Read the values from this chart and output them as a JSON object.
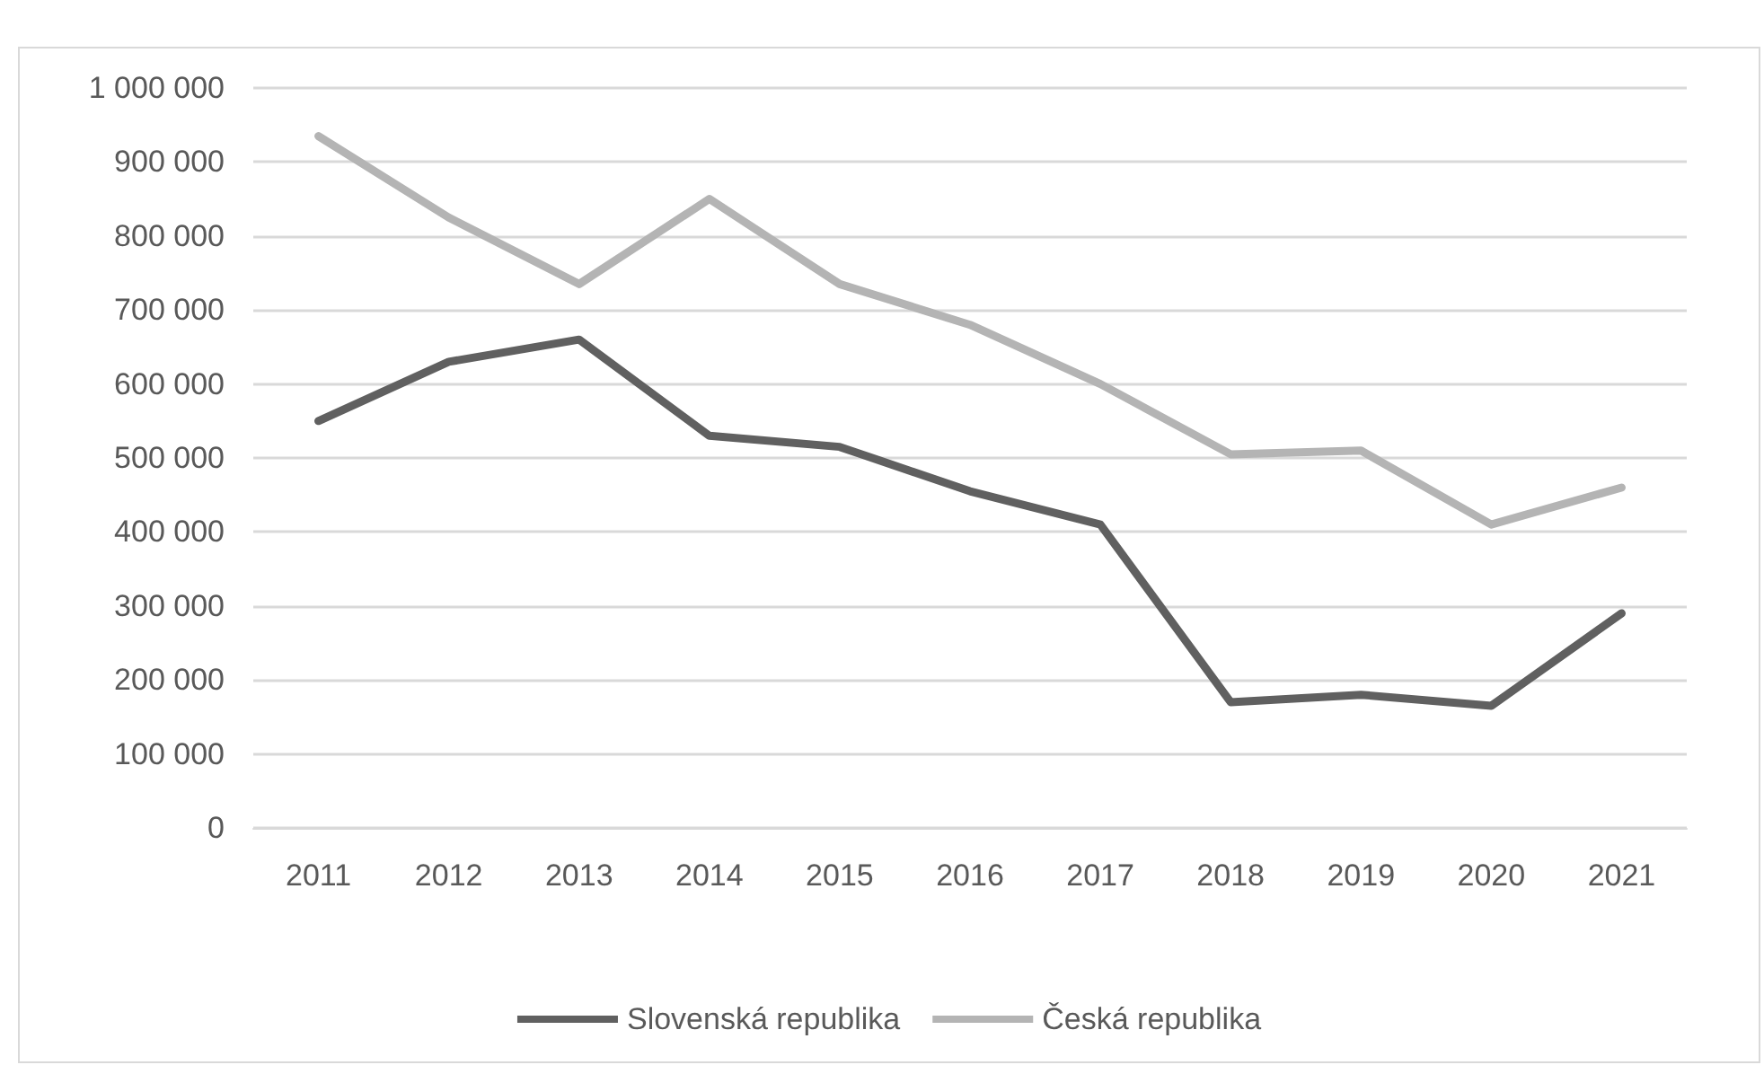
{
  "chart_data": {
    "type": "line",
    "categories": [
      "2011",
      "2012",
      "2013",
      "2014",
      "2015",
      "2016",
      "2017",
      "2018",
      "2019",
      "2020",
      "2021"
    ],
    "series": [
      {
        "name": "Slovenská republika",
        "color": "#606060",
        "values": [
          550000,
          630000,
          660000,
          530000,
          515000,
          455000,
          410000,
          170000,
          180000,
          165000,
          290000
        ]
      },
      {
        "name": "Česká republika",
        "color": "#b4b4b4",
        "values": [
          935000,
          825000,
          735000,
          850000,
          735000,
          680000,
          600000,
          505000,
          510000,
          410000,
          460000
        ]
      }
    ],
    "ylim": [
      0,
      1000000
    ],
    "yticks": [
      0,
      {
        "value": 100000,
        "label": "100 000"
      },
      {
        "value": 200000,
        "label": "200 000"
      },
      {
        "value": 300000,
        "label": "300 000"
      },
      {
        "value": 400000,
        "label": "400 000"
      },
      {
        "value": 500000,
        "label": "500 000"
      },
      {
        "value": 600000,
        "label": "600 000"
      },
      {
        "value": 700000,
        "label": "700 000"
      },
      {
        "value": 800000,
        "label": "800 000"
      },
      {
        "value": 900000,
        "label": "900 000"
      },
      {
        "value": 1000000,
        "label": "1 000 000"
      }
    ],
    "grid": "y",
    "legend": "bottom",
    "marker": "none",
    "line_style": "solid"
  }
}
